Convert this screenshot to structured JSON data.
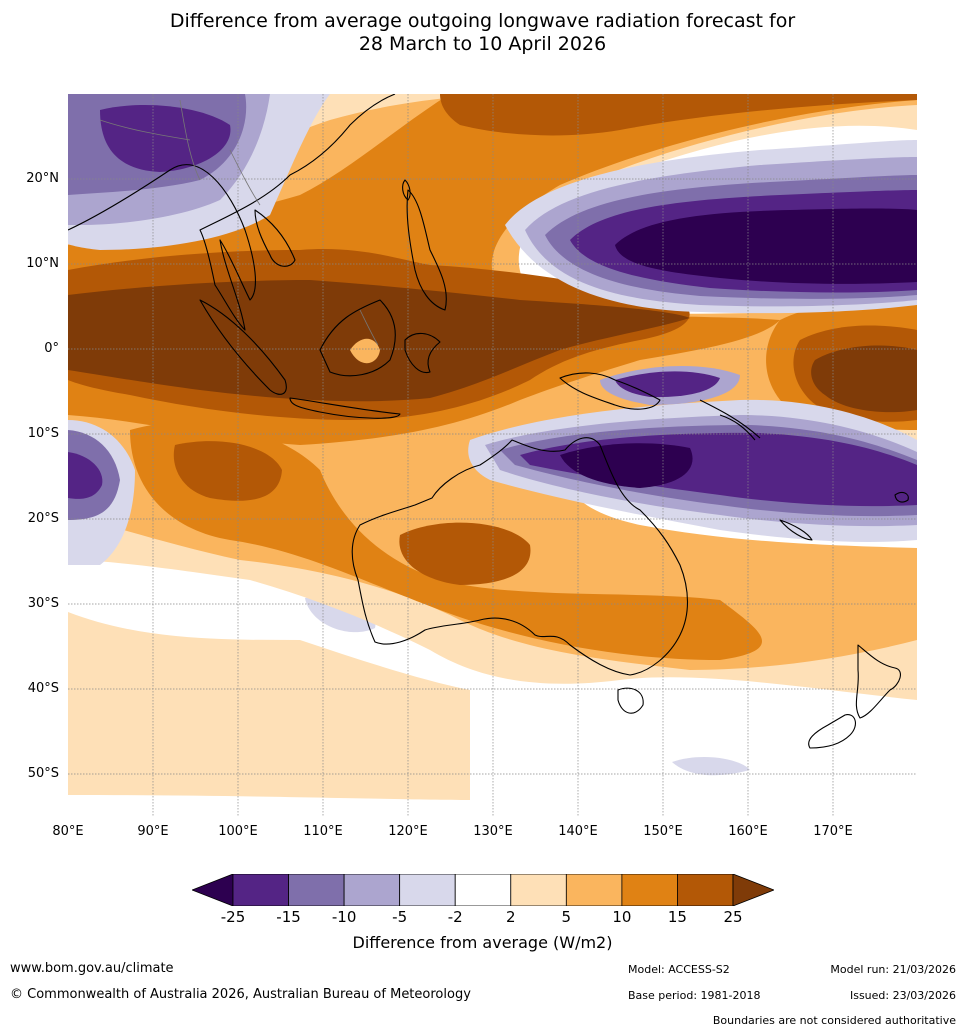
{
  "title": {
    "line1": "Difference from average outgoing longwave radiation forecast for",
    "line2": "28 March to 10 April 2026"
  },
  "map": {
    "lat_labels": [
      "20°N",
      "10°N",
      "0°",
      "10°S",
      "20°S",
      "30°S",
      "40°S",
      "50°S"
    ],
    "lon_labels": [
      "80°E",
      "90°E",
      "100°E",
      "110°E",
      "120°E",
      "130°E",
      "140°E",
      "150°E",
      "160°E",
      "170°E"
    ]
  },
  "colorbar": {
    "ticks": [
      "-25",
      "-15",
      "-10",
      "-5",
      "-2",
      "2",
      "5",
      "10",
      "15",
      "25"
    ],
    "colors": [
      "#2d0050",
      "#542485",
      "#7f6fab",
      "#aca5cf",
      "#d8d8eb",
      "#ffffff",
      "#fee0b7",
      "#fab55e",
      "#e08214",
      "#b35806",
      "#7f3b08"
    ],
    "label": "Difference from average (W/m2)"
  },
  "footer": {
    "website": "www.bom.gov.au/climate",
    "copyright": "© Commonwealth of Australia 2026, Australian Bureau of Meteorology",
    "model": "Model: ACCESS-S2",
    "model_run": "Model run: 21/03/2026",
    "base_period": "Base period: 1981-2018",
    "issued": "Issued: 23/03/2026",
    "disclaimer": "Boundaries are not considered authoritative"
  }
}
